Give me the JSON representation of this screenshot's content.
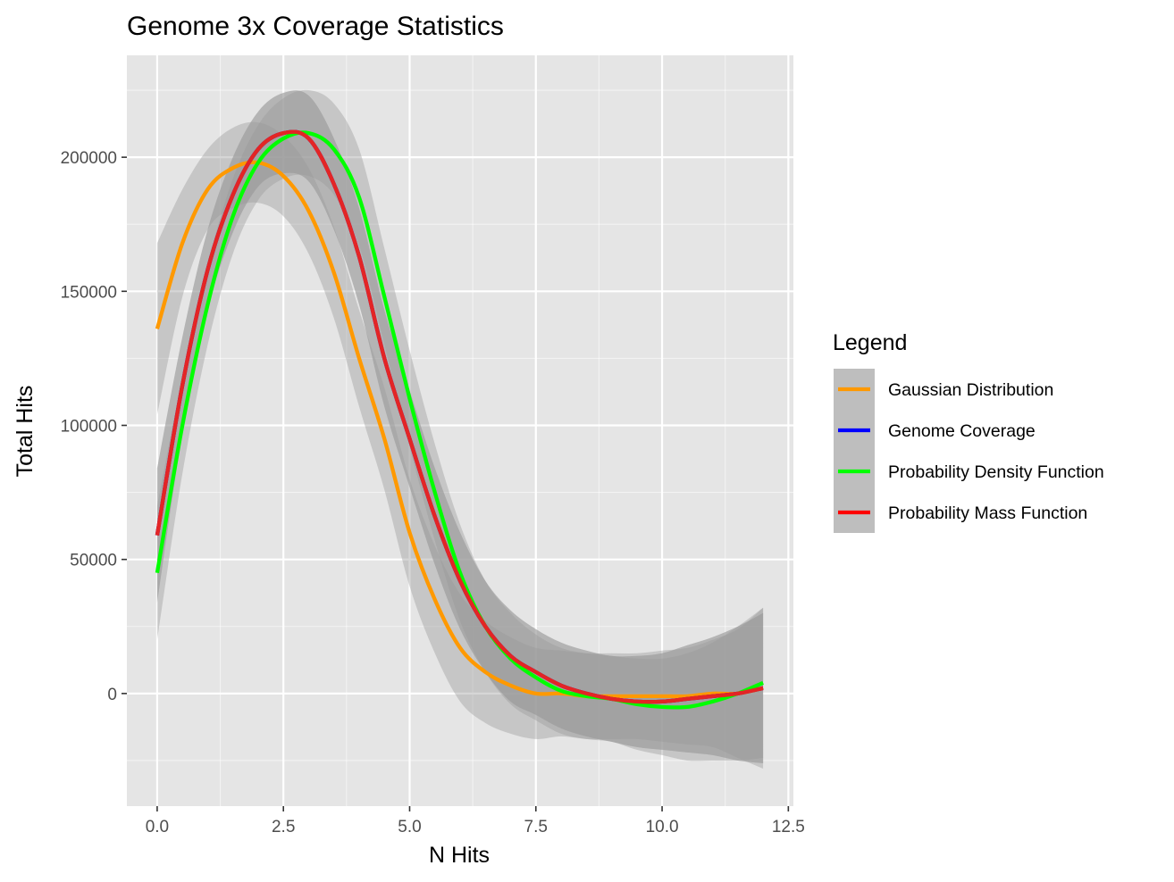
{
  "chart_data": {
    "type": "line",
    "title": "Genome 3x Coverage Statistics",
    "xlabel": "N Hits",
    "ylabel": "Total Hits",
    "xlim": [
      -0.6,
      12.6
    ],
    "ylim": [
      -42000,
      238000
    ],
    "x_ticks": [
      0,
      2.5,
      5,
      7.5,
      10,
      12.5
    ],
    "x_tick_labels": [
      "0.0",
      "2.5",
      "5.0",
      "7.5",
      "10.0",
      "12.5"
    ],
    "y_ticks": [
      0,
      50000,
      100000,
      150000,
      200000
    ],
    "y_tick_labels": [
      "0",
      "50000",
      "100000",
      "150000",
      "200000"
    ],
    "grid": true,
    "legend": {
      "title": "Legend",
      "position": "right",
      "entries": [
        "Gaussian Distribution",
        "Genome Coverage",
        "Probability Density Function",
        "Probability Mass Function"
      ]
    },
    "series": [
      {
        "name": "Gaussian Distribution",
        "color": "#FF9900",
        "x": [
          0,
          0.5,
          1,
          1.5,
          2,
          2.5,
          3,
          3.5,
          4,
          4.5,
          5,
          5.5,
          6,
          6.5,
          7,
          7.5,
          8,
          8.5,
          9,
          9.5,
          10,
          10.5,
          11,
          11.5,
          12
        ],
        "y": [
          136000,
          168000,
          188000,
          196000,
          198000,
          193000,
          180000,
          157000,
          125000,
          95000,
          60000,
          35000,
          17000,
          8000,
          3000,
          0,
          0,
          -1000,
          -1000,
          -1000,
          -1000,
          -1000,
          0,
          0,
          2000
        ],
        "band": [
          32000,
          20000,
          15000,
          15000,
          15000,
          15000,
          16000,
          17000,
          18000,
          19000,
          20000,
          20000,
          20000,
          19000,
          18000,
          17000,
          16000,
          16000,
          16000,
          16000,
          17000,
          18000,
          20000,
          24000,
          30000
        ]
      },
      {
        "name": "Genome Coverage",
        "color": "#0000FF",
        "x": [
          0,
          0.5,
          1,
          1.5,
          2,
          2.5,
          3,
          3.5,
          4,
          4.5,
          5,
          5.5,
          6,
          6.5,
          7,
          7.5,
          8,
          8.5,
          9,
          9.5,
          10,
          10.5,
          11,
          11.5,
          12
        ],
        "y": [
          59000,
          115000,
          158000,
          186000,
          203000,
          209000,
          207000,
          190000,
          163000,
          125000,
          95000,
          66000,
          42000,
          25000,
          14000,
          8000,
          3000,
          0,
          -2000,
          -3000,
          -3000,
          -2000,
          -1000,
          0,
          2000
        ],
        "band": [
          25000,
          18000,
          15000,
          14000,
          14000,
          15000,
          16000,
          17000,
          18000,
          18000,
          18000,
          18000,
          18000,
          17000,
          17000,
          16000,
          16000,
          16000,
          16000,
          17000,
          18000,
          20000,
          22000,
          25000,
          28000
        ]
      },
      {
        "name": "Probability Density Function",
        "color": "#00FF00",
        "x": [
          0,
          0.5,
          1,
          1.5,
          2,
          2.5,
          3,
          3.5,
          4,
          4.5,
          5,
          5.5,
          6,
          6.5,
          7,
          7.5,
          8,
          8.5,
          9,
          9.5,
          10,
          10.5,
          11,
          11.5,
          12
        ],
        "y": [
          45000,
          100000,
          145000,
          178000,
          198000,
          207000,
          209000,
          203000,
          185000,
          148000,
          110000,
          75000,
          45000,
          25000,
          13000,
          6000,
          1000,
          -1000,
          -2000,
          -4000,
          -5000,
          -5000,
          -3000,
          0,
          4000
        ],
        "band": [
          25000,
          18000,
          15000,
          14000,
          14000,
          15000,
          16000,
          17000,
          18000,
          18000,
          18000,
          18000,
          18000,
          17000,
          17000,
          16000,
          16000,
          16000,
          16000,
          17000,
          18000,
          20000,
          22000,
          25000,
          28000
        ]
      },
      {
        "name": "Probability Mass Function",
        "color": "#FF0000",
        "x": [
          0,
          0.5,
          1,
          1.5,
          2,
          2.5,
          3,
          3.5,
          4,
          4.5,
          5,
          5.5,
          6,
          6.5,
          7,
          7.5,
          8,
          8.5,
          9,
          9.5,
          10,
          10.5,
          11,
          11.5,
          12
        ],
        "y": [
          59000,
          115000,
          158000,
          186000,
          203000,
          209000,
          207000,
          190000,
          163000,
          125000,
          95000,
          66000,
          42000,
          25000,
          14000,
          8000,
          3000,
          0,
          -2000,
          -3000,
          -3000,
          -2000,
          -1000,
          0,
          2000
        ],
        "band": [
          25000,
          18000,
          15000,
          14000,
          14000,
          15000,
          16000,
          17000,
          18000,
          18000,
          18000,
          18000,
          18000,
          17000,
          17000,
          16000,
          16000,
          16000,
          16000,
          17000,
          18000,
          20000,
          22000,
          25000,
          28000
        ]
      }
    ]
  },
  "colors": {
    "panel_bg": "#E5E5E5",
    "grid_major": "#FFFFFF",
    "ribbon": "#999999",
    "legend_key_bg": "#BEBEBE",
    "overlap_line": "#CC4444"
  }
}
